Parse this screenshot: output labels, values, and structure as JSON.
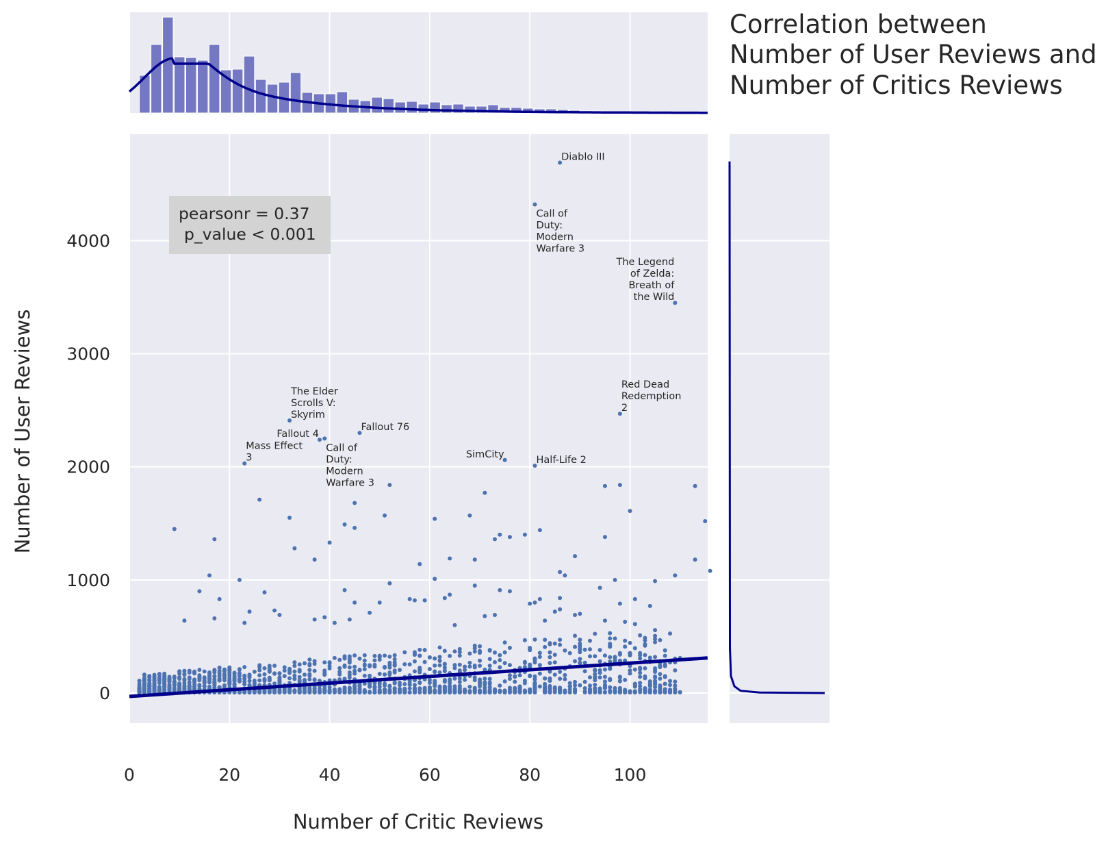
{
  "chart_data": {
    "type": "scatter",
    "title": [
      "Correlation between",
      "Number of User Reviews and",
      "Number of Critics Reviews"
    ],
    "xlabel": "Number of Critic Reviews",
    "ylabel": "Number of User Reviews",
    "xlim": [
      0,
      115.5
    ],
    "ylim": [
      -270,
      4900
    ],
    "xticks": [
      0,
      20,
      40,
      60,
      80,
      100
    ],
    "yticks": [
      0,
      1000,
      2000,
      3000,
      4000
    ],
    "grid": true,
    "stat_box": {
      "line1": "pearsonr = 0.37",
      "line2": "p_value < 0.001"
    },
    "regression": {
      "x": [
        0,
        115.5
      ],
      "y": [
        -30,
        310
      ]
    },
    "annotated_points": [
      {
        "lines": [
          "Diablo III"
        ],
        "x": 86,
        "y": 4690,
        "align": "start"
      },
      {
        "lines": [
          "Call of",
          "Duty:",
          "Modern",
          "Warfare 3"
        ],
        "x": 81,
        "y": 4320,
        "align": "start"
      },
      {
        "lines": [
          "The Legend",
          "of Zelda:",
          "Breath of",
          "the Wild"
        ],
        "x": 109,
        "y": 3450,
        "align": "end"
      },
      {
        "lines": [
          "Red Dead",
          "Redemption",
          "2"
        ],
        "x": 98,
        "y": 2470,
        "align": "start"
      },
      {
        "lines": [
          "The Elder",
          "Scrolls V:",
          "Skyrim"
        ],
        "x": 32,
        "y": 2410,
        "align": "start"
      },
      {
        "lines": [
          "Fallout 76"
        ],
        "x": 46,
        "y": 2300,
        "align": "start"
      },
      {
        "lines": [
          "Fallout 4"
        ],
        "x": 38,
        "y": 2240,
        "align": "end"
      },
      {
        "lines": [
          "Call of",
          "Duty:",
          "Modern",
          "Warfare 3"
        ],
        "x": 39,
        "y": 2250,
        "align": "start"
      },
      {
        "lines": [
          "Mass Effect",
          "3"
        ],
        "x": 23,
        "y": 2030,
        "align": "start"
      },
      {
        "lines": [
          "SimCity"
        ],
        "x": 75,
        "y": 2060,
        "align": "end"
      },
      {
        "lines": [
          "Half-Life 2"
        ],
        "x": 81,
        "y": 2010,
        "align": "start"
      }
    ],
    "outliers": [
      [
        52,
        1840
      ],
      [
        71,
        1770
      ],
      [
        98,
        1840
      ],
      [
        95,
        1830
      ],
      [
        113,
        1830
      ],
      [
        26,
        1710
      ],
      [
        45,
        1680
      ],
      [
        100,
        1610
      ],
      [
        68,
        1570
      ],
      [
        51,
        1570
      ],
      [
        61,
        1540
      ],
      [
        32,
        1550
      ],
      [
        115,
        1520
      ],
      [
        43,
        1490
      ],
      [
        9,
        1450
      ],
      [
        45,
        1460
      ],
      [
        82,
        1440
      ],
      [
        74,
        1400
      ],
      [
        95,
        1380
      ],
      [
        79,
        1400
      ],
      [
        76,
        1380
      ],
      [
        73,
        1360
      ],
      [
        17,
        1360
      ],
      [
        40,
        1330
      ],
      [
        33,
        1280
      ],
      [
        64,
        1190
      ],
      [
        37,
        1180
      ],
      [
        69,
        1180
      ],
      [
        58,
        1140
      ],
      [
        89,
        1210
      ],
      [
        113,
        1180
      ],
      [
        109,
        1040
      ],
      [
        86,
        1070
      ],
      [
        87,
        1040
      ],
      [
        116,
        1080
      ],
      [
        16,
        1040
      ],
      [
        61,
        1010
      ],
      [
        97,
        1000
      ],
      [
        22,
        1000
      ],
      [
        52,
        970
      ],
      [
        105,
        990
      ],
      [
        94,
        930
      ],
      [
        14,
        900
      ],
      [
        27,
        890
      ],
      [
        43,
        910
      ],
      [
        74,
        910
      ],
      [
        76,
        900
      ],
      [
        69,
        950
      ],
      [
        18,
        830
      ],
      [
        57,
        820
      ],
      [
        59,
        820
      ],
      [
        56,
        830
      ],
      [
        64,
        870
      ],
      [
        82,
        830
      ],
      [
        86,
        840
      ],
      [
        101,
        830
      ],
      [
        98,
        790
      ],
      [
        63,
        840
      ],
      [
        80,
        790
      ],
      [
        81,
        800
      ],
      [
        104,
        770
      ],
      [
        86,
        740
      ],
      [
        85,
        720
      ],
      [
        83,
        640
      ],
      [
        45,
        800
      ],
      [
        50,
        800
      ],
      [
        17,
        660
      ],
      [
        11,
        640
      ],
      [
        24,
        720
      ],
      [
        23,
        620
      ],
      [
        29,
        730
      ],
      [
        30,
        690
      ],
      [
        39,
        670
      ],
      [
        37,
        650
      ],
      [
        41,
        620
      ],
      [
        44,
        650
      ],
      [
        48,
        710
      ],
      [
        65,
        600
      ],
      [
        71,
        680
      ],
      [
        73,
        690
      ],
      [
        89,
        690
      ],
      [
        90,
        700
      ],
      [
        99,
        630
      ],
      [
        95,
        640
      ],
      [
        101,
        610
      ]
    ]
  }
}
